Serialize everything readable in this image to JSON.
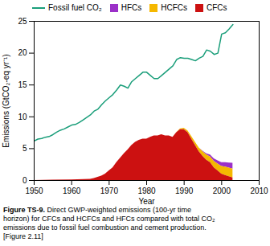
{
  "chart_data": {
    "type": "area",
    "xlabel": "Year",
    "ylabel": "Emissions (GtCO₂-eq yr⁻¹)",
    "caption": {
      "bold": "Figure TS-9.",
      "lines": [
        " Direct GWP-weighted emissions (100-yr time",
        "horizon) for CFCs and HCFCs and HFCs compared with total CO₂",
        "emissions due to fossil fuel combustion and cement production.",
        "[Figure 2.11]"
      ]
    },
    "stacked": true,
    "legend": "top",
    "xlim": [
      1950,
      2010
    ],
    "ylim": [
      0,
      25
    ],
    "xticks": [
      1950,
      1960,
      1970,
      1980,
      1990,
      2000,
      2010
    ],
    "yticks": [
      0,
      5,
      10,
      15,
      20,
      25
    ],
    "series": [
      {
        "name": "Fossil fuel CO₂",
        "type": "line",
        "color": "#1a9e7a",
        "x": [
          1950,
          1951,
          1952,
          1953,
          1954,
          1955,
          1956,
          1957,
          1958,
          1959,
          1960,
          1961,
          1962,
          1963,
          1964,
          1965,
          1966,
          1967,
          1968,
          1969,
          1970,
          1971,
          1972,
          1973,
          1974,
          1975,
          1976,
          1977,
          1978,
          1979,
          1980,
          1981,
          1982,
          1983,
          1984,
          1985,
          1986,
          1987,
          1988,
          1989,
          1990,
          1991,
          1992,
          1993,
          1994,
          1995,
          1996,
          1997,
          1998,
          1999,
          2000,
          2001,
          2002,
          2003
        ],
        "values": [
          6.2,
          6.5,
          6.6,
          6.8,
          6.9,
          7.2,
          7.6,
          7.9,
          8.1,
          8.4,
          8.7,
          8.8,
          9.1,
          9.5,
          9.9,
          10.3,
          10.9,
          11.2,
          11.9,
          12.5,
          13.0,
          13.5,
          14.2,
          15.0,
          14.8,
          14.5,
          15.5,
          16.0,
          16.5,
          17.0,
          17.0,
          16.5,
          16.0,
          16.0,
          16.5,
          17.0,
          17.5,
          18.0,
          19.0,
          19.3,
          19.2,
          19.2,
          19.0,
          18.8,
          19.2,
          19.5,
          20.5,
          20.3,
          19.8,
          20.0,
          23.0,
          23.2,
          23.8,
          24.5
        ]
      },
      {
        "name": "HFCs",
        "type": "area",
        "color": "#9b30c8",
        "x": [
          1950,
          1955,
          1960,
          1965,
          1966,
          1967,
          1968,
          1969,
          1970,
          1971,
          1972,
          1973,
          1974,
          1975,
          1976,
          1977,
          1978,
          1979,
          1980,
          1981,
          1982,
          1983,
          1984,
          1985,
          1986,
          1987,
          1988,
          1989,
          1990,
          1991,
          1992,
          1993,
          1994,
          1995,
          1996,
          1997,
          1998,
          1999,
          2000,
          2001,
          2002,
          2003
        ],
        "values": [
          0.0,
          0.0,
          0.0,
          0.0,
          0.0,
          0.0,
          0.0,
          0.0,
          0.0,
          0.0,
          0.0,
          0.0,
          0.0,
          0.0,
          0.0,
          0.0,
          0.0,
          0.0,
          0.0,
          0.0,
          0.0,
          0.0,
          0.0,
          0.0,
          0.0,
          0.0,
          0.0,
          0.0,
          0.0,
          0.0,
          0.0,
          0.0,
          0.0,
          0.1,
          0.2,
          0.3,
          0.4,
          0.5,
          0.6,
          0.7,
          0.8,
          0.9
        ]
      },
      {
        "name": "HCFCs",
        "type": "area",
        "color": "#f5b800",
        "x": [
          1950,
          1955,
          1960,
          1965,
          1966,
          1967,
          1968,
          1969,
          1970,
          1971,
          1972,
          1973,
          1974,
          1975,
          1976,
          1977,
          1978,
          1979,
          1980,
          1981,
          1982,
          1983,
          1984,
          1985,
          1986,
          1987,
          1988,
          1989,
          1990,
          1991,
          1992,
          1993,
          1994,
          1995,
          1996,
          1997,
          1998,
          1999,
          2000,
          2001,
          2002,
          2003
        ],
        "values": [
          0.0,
          0.0,
          0.0,
          0.0,
          0.0,
          0.0,
          0.0,
          0.0,
          0.0,
          0.0,
          0.0,
          0.0,
          0.0,
          0.0,
          0.0,
          0.0,
          0.0,
          0.0,
          0.0,
          0.0,
          0.0,
          0.0,
          0.0,
          0.0,
          0.0,
          0.0,
          0.05,
          0.1,
          0.2,
          0.3,
          0.4,
          0.5,
          0.6,
          0.7,
          0.8,
          0.9,
          1.0,
          1.1,
          1.2,
          1.3,
          1.35,
          1.4
        ]
      },
      {
        "name": "CFCs",
        "type": "area",
        "color": "#cc1111",
        "x": [
          1950,
          1955,
          1960,
          1965,
          1966,
          1967,
          1968,
          1969,
          1970,
          1971,
          1972,
          1973,
          1974,
          1975,
          1976,
          1977,
          1978,
          1979,
          1980,
          1981,
          1982,
          1983,
          1984,
          1985,
          1986,
          1987,
          1988,
          1989,
          1990,
          1991,
          1992,
          1993,
          1994,
          1995,
          1996,
          1997,
          1998,
          1999,
          2000,
          2001,
          2002,
          2003
        ],
        "values": [
          0.0,
          0.05,
          0.1,
          0.2,
          0.3,
          0.5,
          0.7,
          1.0,
          1.5,
          2.0,
          2.8,
          3.5,
          4.2,
          4.8,
          5.5,
          6.0,
          6.3,
          6.5,
          6.5,
          6.8,
          7.0,
          7.0,
          7.2,
          7.0,
          7.0,
          6.8,
          7.5,
          8.0,
          8.0,
          7.5,
          6.5,
          5.5,
          4.5,
          3.8,
          3.2,
          2.8,
          2.0,
          1.5,
          1.0,
          0.8,
          0.6,
          0.4
        ]
      }
    ]
  }
}
